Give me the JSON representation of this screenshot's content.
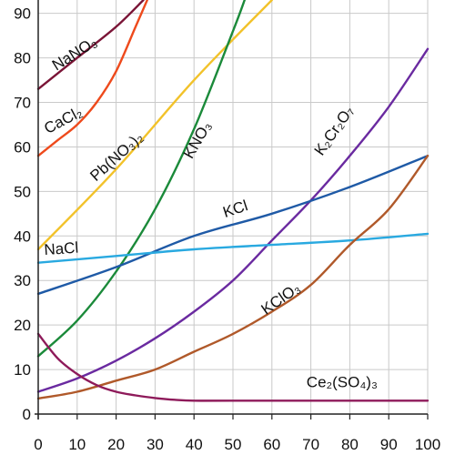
{
  "chart_data": {
    "type": "line",
    "title": "",
    "xlabel": "",
    "ylabel": "",
    "xlim": [
      0,
      100
    ],
    "ylim": [
      0,
      93
    ],
    "grid": true,
    "x_ticks": [
      "0",
      "10",
      "20",
      "30",
      "40",
      "50",
      "60",
      "70",
      "80",
      "90",
      "100"
    ],
    "y_ticks": [
      "0",
      "10",
      "20",
      "30",
      "40",
      "50",
      "60",
      "70",
      "80",
      "90"
    ],
    "series": [
      {
        "name": "NaNO3",
        "label": "NaNO₃",
        "color": "#7a1436",
        "x": [
          0,
          10,
          20,
          27
        ],
        "y": [
          73,
          80,
          87,
          93
        ]
      },
      {
        "name": "CaCl2",
        "label": "CaCl₂",
        "color": "#ee4a1c",
        "x": [
          0,
          5,
          10,
          15,
          20,
          25,
          28
        ],
        "y": [
          58,
          61.5,
          65,
          70,
          77,
          87,
          93
        ]
      },
      {
        "name": "Pb(NO3)2",
        "label": "Pb(NO₃)₂",
        "color": "#f2c22a",
        "x": [
          0,
          20,
          40,
          60
        ],
        "y": [
          37,
          55,
          75,
          93
        ]
      },
      {
        "name": "KNO3",
        "label": "KNO₃",
        "color": "#1b8a3a",
        "x": [
          0,
          10,
          20,
          30,
          40,
          50,
          53
        ],
        "y": [
          13,
          21,
          32,
          46,
          64,
          86,
          93
        ]
      },
      {
        "name": "K2Cr2O7",
        "label": "K₂Cr₂O₇",
        "color": "#6a2aa0",
        "x": [
          0,
          10,
          20,
          30,
          40,
          50,
          60,
          70,
          80,
          90,
          100
        ],
        "y": [
          5,
          8,
          12,
          17,
          23,
          30,
          39,
          48,
          58,
          69,
          82
        ]
      },
      {
        "name": "KCl",
        "label": "KCl",
        "color": "#1f5aa6",
        "x": [
          0,
          20,
          40,
          60,
          80,
          100
        ],
        "y": [
          27,
          33,
          40,
          45,
          51,
          58
        ]
      },
      {
        "name": "NaCl",
        "label": "NaCl",
        "color": "#29a9e0",
        "x": [
          0,
          20,
          40,
          60,
          80,
          100
        ],
        "y": [
          34,
          35.5,
          37,
          38,
          39,
          40.5
        ]
      },
      {
        "name": "KClO3",
        "label": "KClO₃",
        "color": "#b0592a",
        "x": [
          0,
          10,
          20,
          30,
          40,
          50,
          60,
          70,
          80,
          90,
          100
        ],
        "y": [
          3.5,
          5,
          7.5,
          10,
          14,
          18,
          23,
          29,
          38,
          46,
          58
        ]
      },
      {
        "name": "Ce2(SO4)3",
        "label": "Ce₂(SO₄)₃",
        "color": "#8e1a5a",
        "x": [
          0,
          5,
          10,
          15,
          20,
          25,
          30,
          35,
          40,
          50,
          100
        ],
        "y": [
          18,
          12.5,
          9,
          6.5,
          5,
          4.2,
          3.6,
          3.2,
          3,
          3,
          3
        ]
      }
    ],
    "annotations": [
      {
        "text": "NaNO₃",
        "x": 10,
        "y": 80,
        "rotate": -32
      },
      {
        "text": "CaCl₂",
        "x": 7,
        "y": 65,
        "rotate": -28
      },
      {
        "text": "Pb(NO₃)₂",
        "x": 21,
        "y": 57,
        "rotate": -42
      },
      {
        "text": "KNO₃",
        "x": 42,
        "y": 61,
        "rotate": -60
      },
      {
        "text": "K₂Cr₂O₇",
        "x": 77,
        "y": 63,
        "rotate": -55
      },
      {
        "text": "KCl",
        "x": 51,
        "y": 45,
        "rotate": -18
      },
      {
        "text": "NaCl",
        "x": 6,
        "y": 36,
        "rotate": -4
      },
      {
        "text": "KClO₃",
        "x": 63,
        "y": 25,
        "rotate": -35
      },
      {
        "text": "Ce₂(SO₄)₃",
        "x": 78,
        "y": 6,
        "rotate": 0
      }
    ]
  }
}
